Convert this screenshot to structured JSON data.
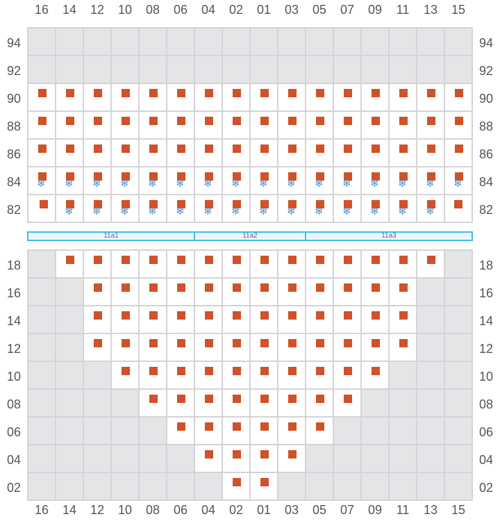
{
  "columns": [
    "16",
    "14",
    "12",
    "10",
    "08",
    "06",
    "04",
    "02",
    "01",
    "03",
    "05",
    "07",
    "09",
    "11",
    "13",
    "15"
  ],
  "colors": {
    "seat": "#cf5228",
    "snow": "#4a90d9",
    "unavailable": "#e5e5e8",
    "band_border": "#3bbcf0"
  },
  "legend_codes": {
    "g": "unavailable",
    "s": "seat",
    "f": "seat-with-snowflake-icon",
    "w": "empty"
  },
  "top_section": [
    {
      "label": "94",
      "cells": "gggggggggggggggg"
    },
    {
      "label": "92",
      "cells": "gggggggggggggggg"
    },
    {
      "label": "90",
      "cells": "ssssssssssssssss"
    },
    {
      "label": "88",
      "cells": "ssssssssssssssss"
    },
    {
      "label": "86",
      "cells": "ssssssssssssssss"
    },
    {
      "label": "84",
      "cells": "ffffffffffffffff"
    },
    {
      "label": "82",
      "cells": "sffffffffffffffs"
    }
  ],
  "bands": [
    {
      "label": "11a1",
      "span": 6
    },
    {
      "label": "11a2",
      "span": 4
    },
    {
      "label": "11a3",
      "span": 6
    }
  ],
  "bottom_section": [
    {
      "label": "18",
      "cells": "gssssssssssssssg"
    },
    {
      "label": "16",
      "cells": "ggssssssssssssgg"
    },
    {
      "label": "14",
      "cells": "ggssssssssssssgg"
    },
    {
      "label": "12",
      "cells": "ggssssssssssssgg"
    },
    {
      "label": "10",
      "cells": "gggssssssssssggg"
    },
    {
      "label": "08",
      "cells": "ggggssssssssgggg"
    },
    {
      "label": "06",
      "cells": "gggggssssssggggg"
    },
    {
      "label": "04",
      "cells": "ggggggssssgggggg"
    },
    {
      "label": "02",
      "cells": "gggggggssggggggg"
    }
  ]
}
